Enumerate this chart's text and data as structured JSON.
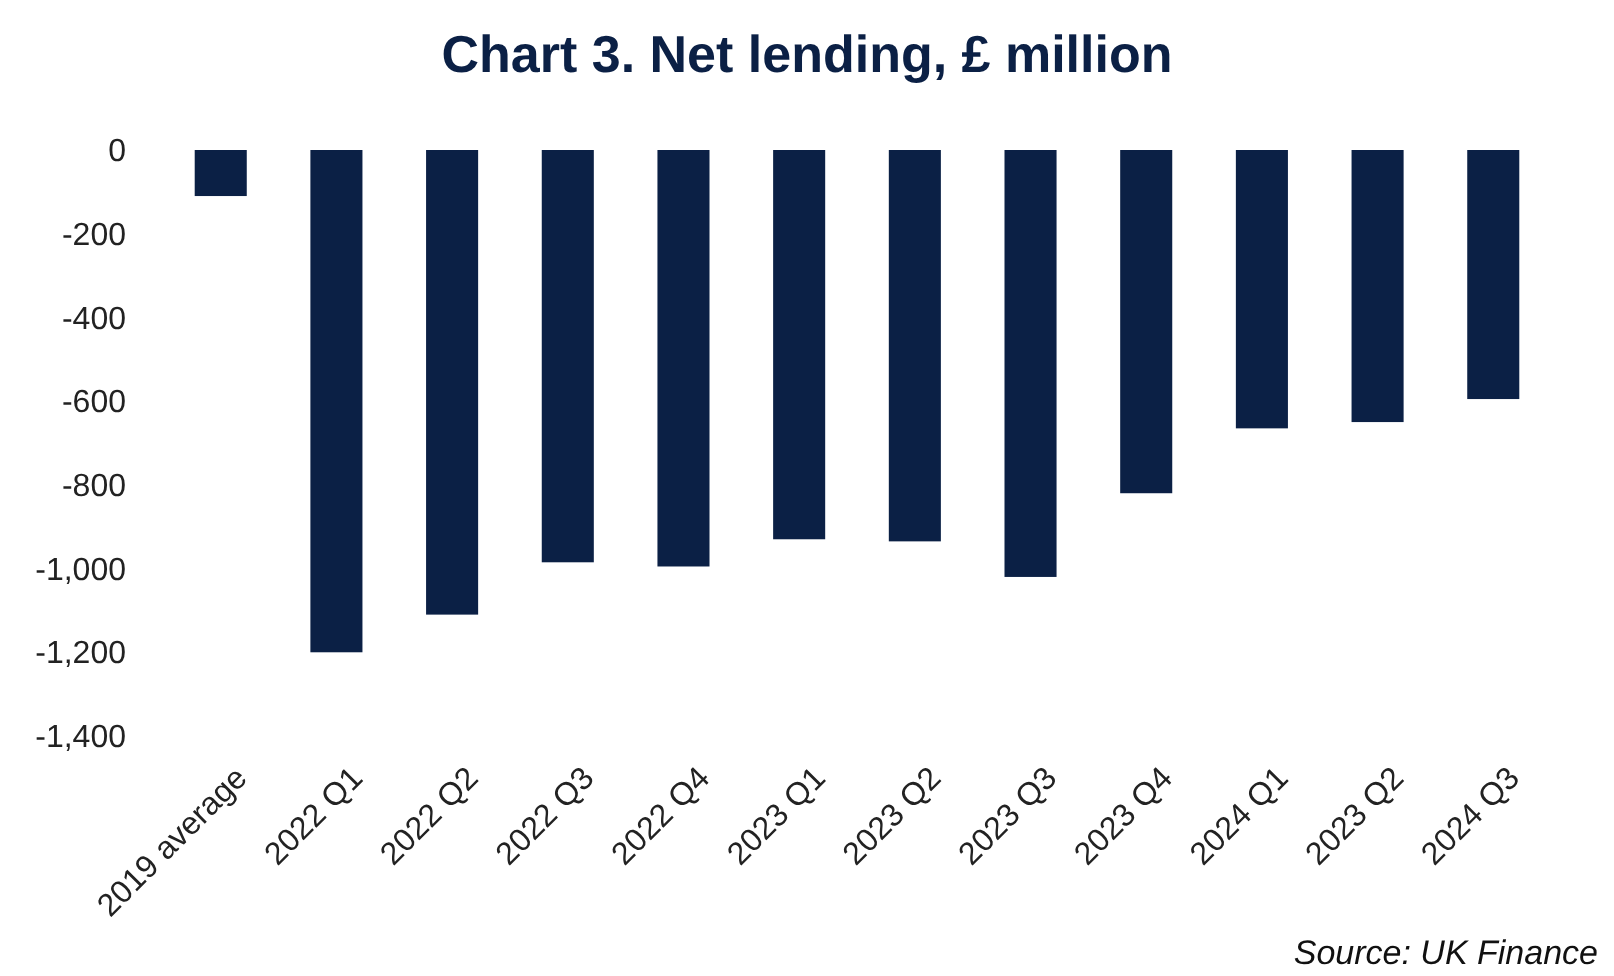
{
  "chart_data": {
    "type": "bar",
    "title": "Chart 3. Net lending, £ million",
    "categories": [
      "2019 average",
      "2022 Q1",
      "2022 Q2",
      "2022 Q3",
      "2022 Q4",
      "2023 Q1",
      "2023 Q2",
      "2023 Q3",
      "2023 Q4",
      "2024 Q1",
      "2023 Q2",
      "2024 Q3"
    ],
    "values": [
      -110,
      -1200,
      -1110,
      -985,
      -995,
      -930,
      -935,
      -1020,
      -820,
      -665,
      -650,
      -595
    ],
    "color": "#0b2045",
    "ylim": [
      -1400,
      0
    ],
    "yticks": [
      0,
      -200,
      -400,
      -600,
      -800,
      {
        "value": -1000,
        "label": "-1,000"
      },
      {
        "value": -1200,
        "label": "-1,200"
      },
      {
        "value": -1400,
        "label": "-1,400"
      }
    ],
    "grid": false,
    "annotations": [
      "Source: UK Finance"
    ]
  }
}
